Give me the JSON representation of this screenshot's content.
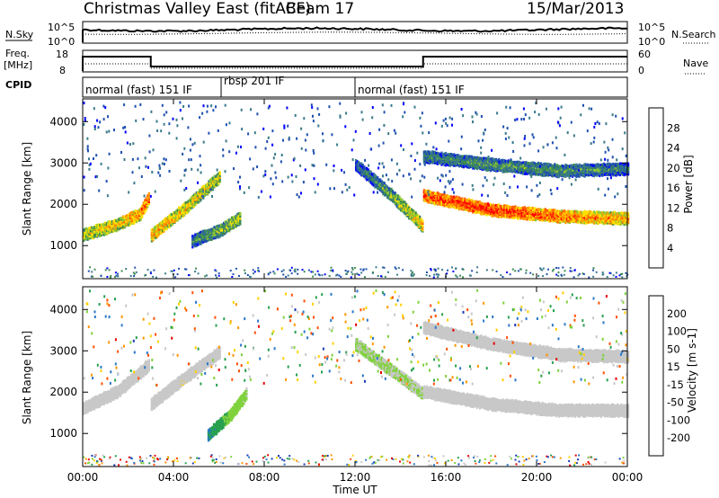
{
  "header": {
    "title": "Christmas Valley East (fitACF)",
    "beam": "Beam 17",
    "date": "15/Mar/2013"
  },
  "panels": {
    "nsky": {
      "label": "N.Sky",
      "ticks": [
        "10^5",
        "10^0"
      ],
      "right_label": "N.Search",
      "right_ticks": [
        "10^5",
        "10^0"
      ]
    },
    "freq": {
      "label_line1": "Freq.",
      "label_line2": "[MHz]",
      "ticks": [
        "18",
        "8"
      ],
      "right_label": "Nave",
      "right_ticks": [
        "60",
        "0"
      ]
    },
    "cpid": {
      "label": "CPID"
    }
  },
  "modes": [
    {
      "name": "normal (fast) 151 IF",
      "start_h": 0,
      "end_h": 6.1
    },
    {
      "name": "rbsp 201 IF",
      "start_h": 6.1,
      "end_h": 12.0
    },
    {
      "name": "normal (fast) 151 IF",
      "start_h": 12.0,
      "end_h": 24
    }
  ],
  "chart_data": [
    {
      "type": "heatmap",
      "title": "Power",
      "ylabel": "Slant Range [km]",
      "yticks": [
        "1000",
        "2000",
        "3000",
        "4000"
      ],
      "ylim": [
        200,
        4550
      ],
      "xlim": [
        "00:00",
        "24:00"
      ],
      "colorbar": {
        "label": "Power [dB]",
        "ticks": [
          "28",
          "24",
          "20",
          "16",
          "12",
          "8",
          "4"
        ],
        "range": [
          0,
          30
        ]
      },
      "echo_bands": [
        {
          "t": [
            0.0,
            1.5,
            2.5,
            2.9
          ],
          "range_km": [
            1300,
            1550,
            1800,
            2200
          ],
          "power_db": [
            18,
            20,
            24,
            26
          ]
        },
        {
          "t": [
            3.0,
            4.5,
            6.0
          ],
          "range_km": [
            1300,
            1950,
            2700
          ],
          "power_db": [
            22,
            20,
            18
          ]
        },
        {
          "t": [
            4.8,
            6.0,
            6.9
          ],
          "range_km": [
            1150,
            1400,
            1700
          ],
          "power_db": [
            10,
            14,
            18
          ]
        },
        {
          "t": [
            12.0,
            13.5,
            15.0
          ],
          "range_km": [
            3000,
            2300,
            1500
          ],
          "power_db": [
            8,
            14,
            22
          ]
        },
        {
          "t": [
            15.0,
            18.0,
            21.0,
            24.0
          ],
          "range_km": [
            2250,
            1900,
            1750,
            1700
          ],
          "power_db": [
            26,
            28,
            25,
            22
          ]
        },
        {
          "t": [
            15.0,
            18.0,
            21.0,
            24.0
          ],
          "range_km": [
            3200,
            3000,
            2850,
            2900
          ],
          "power_db": [
            10,
            12,
            12,
            10
          ]
        }
      ]
    },
    {
      "type": "heatmap",
      "title": "Velocity",
      "ylabel": "Slant Range [km]",
      "xlabel": "Time UT",
      "yticks": [
        "1000",
        "2000",
        "3000",
        "4000"
      ],
      "ylim": [
        200,
        4550
      ],
      "xticks": [
        "00:00",
        "04:00",
        "08:00",
        "12:00",
        "16:00",
        "20:00",
        "00:00"
      ],
      "colorbar": {
        "label": "Velocity [m s-1]",
        "ticks": [
          "200",
          "100",
          "50",
          "15",
          "-15",
          "-50",
          "-100",
          "-200"
        ],
        "range": [
          -250,
          250
        ]
      },
      "echo_bands": [
        {
          "t": [
            0.0,
            1.5,
            2.9
          ],
          "range_km": [
            1650,
            2050,
            2700
          ],
          "velocity_ms": [
            -5,
            0,
            -8
          ]
        },
        {
          "t": [
            3.0,
            4.5,
            6.0
          ],
          "range_km": [
            1750,
            2400,
            3000
          ],
          "velocity_ms": [
            0,
            -10,
            5
          ]
        },
        {
          "t": [
            5.5,
            6.5,
            7.2
          ],
          "range_km": [
            1000,
            1500,
            2000
          ],
          "velocity_ms": [
            150,
            60,
            40
          ]
        },
        {
          "t": [
            12.0,
            13.5,
            15.0
          ],
          "range_km": [
            3200,
            2600,
            2000
          ],
          "velocity_ms": [
            35,
            30,
            25
          ]
        },
        {
          "t": [
            15.0,
            18.0,
            21.0,
            24.0
          ],
          "range_km": [
            2050,
            1750,
            1600,
            1600
          ],
          "velocity_ms": [
            0,
            0,
            5,
            0
          ]
        },
        {
          "t": [
            15.0,
            18.0,
            21.0,
            24.0
          ],
          "range_km": [
            3600,
            3200,
            2950,
            2900
          ],
          "velocity_ms": [
            -5,
            0,
            0,
            5
          ]
        }
      ]
    }
  ],
  "colors": {
    "power_scale": [
      "#0000ff",
      "#2050b0",
      "#3a7a8a",
      "#3c8c50",
      "#90c832",
      "#ffe000",
      "#ff9a00",
      "#ff5a00",
      "#ff0000"
    ],
    "velocity_scale": [
      "#1a3cb4",
      "#2a78c8",
      "#28a050",
      "#80d23c",
      "#c8c8c8",
      "#ffd000",
      "#ff9600",
      "#ff5000",
      "#e80000"
    ]
  }
}
